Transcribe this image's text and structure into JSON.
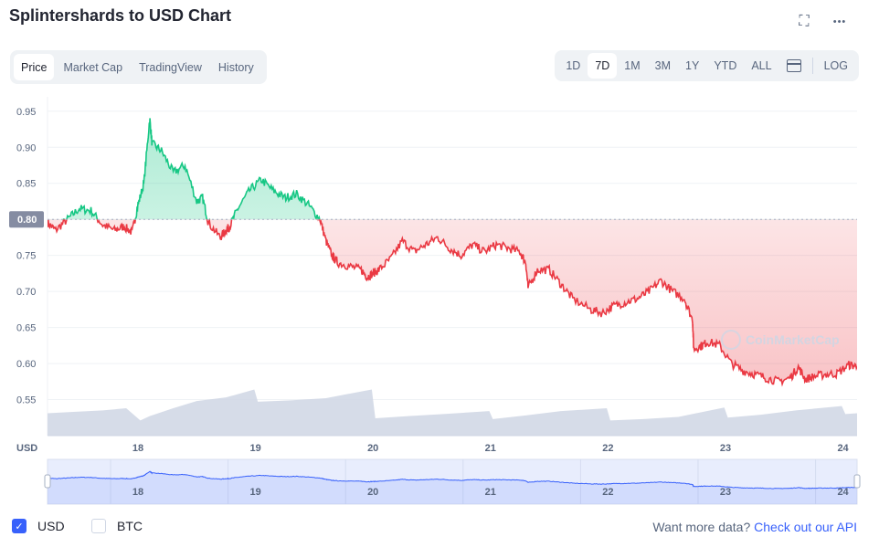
{
  "header": {
    "title": "Splintershards to USD Chart",
    "icons": [
      "fullscreen-icon",
      "more-icon"
    ],
    "more_glyph": "•••",
    "fullscreen_glyph": "⛶"
  },
  "tabs": [
    "Price",
    "Market Cap",
    "TradingView",
    "History"
  ],
  "active_tab": "Price",
  "ranges": [
    "1D",
    "7D",
    "1M",
    "3M",
    "1Y",
    "YTD",
    "ALL"
  ],
  "active_range": "7D",
  "log_label": "LOG",
  "legend": {
    "usd": "USD",
    "btc": "BTC",
    "usd_checked": true,
    "btc_checked": false,
    "check_glyph": "✓"
  },
  "api": {
    "prefix": "Want more data?",
    "link": "Check out our API"
  },
  "colors": {
    "up": "#16c784",
    "down": "#ea3943",
    "volume": "#cfd6e4",
    "navigator": "#3861fb",
    "accent": "#3861fb"
  },
  "chart_data": {
    "type": "line",
    "yaxis_unit": "USD",
    "yticks": [
      0.55,
      0.6,
      0.65,
      0.7,
      0.75,
      0.8,
      0.85,
      0.9,
      0.95
    ],
    "ylim": [
      0.5,
      0.97
    ],
    "xlim": [
      17.23,
      24.12
    ],
    "xticks": [
      "18",
      "19",
      "20",
      "21",
      "22",
      "23",
      "24"
    ],
    "xtick_values": [
      18,
      19,
      20,
      21,
      22,
      23,
      24
    ],
    "reference_value": 0.8,
    "reference_label": "0.80",
    "watermark": "CoinMarketCap",
    "price": {
      "x": [
        17.23,
        17.3,
        17.4,
        17.5,
        17.6,
        17.7,
        17.8,
        17.88,
        17.95,
        18.0,
        18.05,
        18.1,
        18.12,
        18.2,
        18.3,
        18.4,
        18.5,
        18.55,
        18.6,
        18.7,
        18.75,
        18.78,
        18.85,
        18.95,
        19.05,
        19.15,
        19.25,
        19.35,
        19.45,
        19.55,
        19.6,
        19.65,
        19.7,
        19.8,
        19.9,
        19.95,
        20.0,
        20.05,
        20.15,
        20.25,
        20.35,
        20.45,
        20.55,
        20.65,
        20.75,
        20.85,
        20.95,
        21.05,
        21.15,
        21.25,
        21.3,
        21.32,
        21.4,
        21.5,
        21.6,
        21.7,
        21.85,
        21.95,
        22.05,
        22.15,
        22.25,
        22.35,
        22.45,
        22.55,
        22.65,
        22.72,
        22.73,
        22.8,
        22.85,
        22.95,
        23.05,
        23.15,
        23.25,
        23.35,
        23.45,
        23.55,
        23.62,
        23.68,
        23.75,
        23.85,
        23.95,
        24.05,
        24.12
      ],
      "y": [
        0.795,
        0.785,
        0.8,
        0.815,
        0.812,
        0.792,
        0.785,
        0.79,
        0.782,
        0.82,
        0.85,
        0.94,
        0.905,
        0.895,
        0.865,
        0.875,
        0.825,
        0.83,
        0.795,
        0.775,
        0.785,
        0.79,
        0.815,
        0.84,
        0.855,
        0.84,
        0.83,
        0.835,
        0.82,
        0.8,
        0.77,
        0.75,
        0.74,
        0.735,
        0.73,
        0.72,
        0.725,
        0.73,
        0.745,
        0.77,
        0.755,
        0.765,
        0.775,
        0.76,
        0.75,
        0.765,
        0.755,
        0.765,
        0.76,
        0.755,
        0.74,
        0.705,
        0.73,
        0.73,
        0.71,
        0.69,
        0.675,
        0.67,
        0.68,
        0.685,
        0.69,
        0.7,
        0.715,
        0.7,
        0.69,
        0.66,
        0.62,
        0.625,
        0.63,
        0.625,
        0.6,
        0.59,
        0.585,
        0.58,
        0.575,
        0.58,
        0.595,
        0.578,
        0.582,
        0.585,
        0.586,
        0.598,
        0.596
      ]
    },
    "volume": {
      "x": [
        17.23,
        17.45,
        17.7,
        17.9,
        18.02,
        18.1,
        18.3,
        18.5,
        18.75,
        18.99,
        19.02,
        19.3,
        19.6,
        19.99,
        20.02,
        20.3,
        20.6,
        20.99,
        21.02,
        21.3,
        21.6,
        21.99,
        22.02,
        22.3,
        22.6,
        22.99,
        23.02,
        23.3,
        23.6,
        23.99,
        24.02,
        24.12
      ],
      "y": [
        0.531,
        0.533,
        0.535,
        0.538,
        0.521,
        0.527,
        0.538,
        0.548,
        0.553,
        0.564,
        0.547,
        0.549,
        0.552,
        0.564,
        0.524,
        0.527,
        0.53,
        0.534,
        0.523,
        0.528,
        0.534,
        0.538,
        0.521,
        0.523,
        0.526,
        0.539,
        0.525,
        0.529,
        0.535,
        0.541,
        0.53,
        0.531
      ]
    }
  }
}
